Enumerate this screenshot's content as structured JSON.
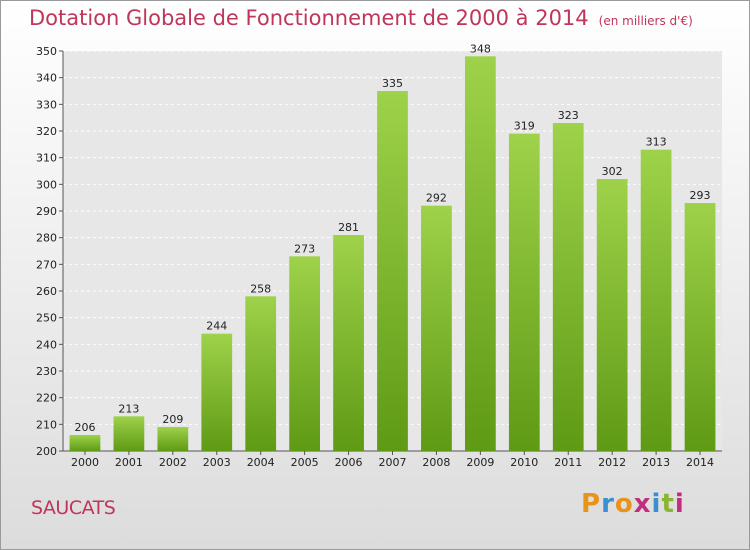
{
  "header": {
    "title": "Dotation Globale de Fonctionnement de 2000 à 2014",
    "unit": "(en milliers d'€)"
  },
  "footer": {
    "place": "SAUCATS",
    "logo_letters": [
      "P",
      "r",
      "o",
      "x",
      "i",
      "t",
      "i"
    ],
    "logo_colors": [
      "#e8941a",
      "#3b8fd0",
      "#e8941a",
      "#c22e7d",
      "#3b8fd0",
      "#8ab52e",
      "#c22e7d"
    ]
  },
  "colors": {
    "bar_top": "#9ed24a",
    "bar_bottom": "#5f9a15",
    "title": "#c0355a"
  },
  "chart_data": {
    "type": "bar",
    "title": "Dotation Globale de Fonctionnement de 2000 à 2014",
    "xlabel": "",
    "ylabel": "",
    "ylim": [
      200,
      350
    ],
    "yticks": [
      200,
      210,
      220,
      230,
      240,
      250,
      260,
      270,
      280,
      290,
      300,
      310,
      320,
      330,
      340,
      350
    ],
    "grid": true,
    "categories": [
      "2000",
      "2001",
      "2002",
      "2003",
      "2004",
      "2005",
      "2006",
      "2007",
      "2008",
      "2009",
      "2010",
      "2011",
      "2012",
      "2013",
      "2014"
    ],
    "values": [
      206,
      213,
      209,
      244,
      258,
      273,
      281,
      335,
      292,
      348,
      319,
      323,
      302,
      313,
      293
    ]
  }
}
